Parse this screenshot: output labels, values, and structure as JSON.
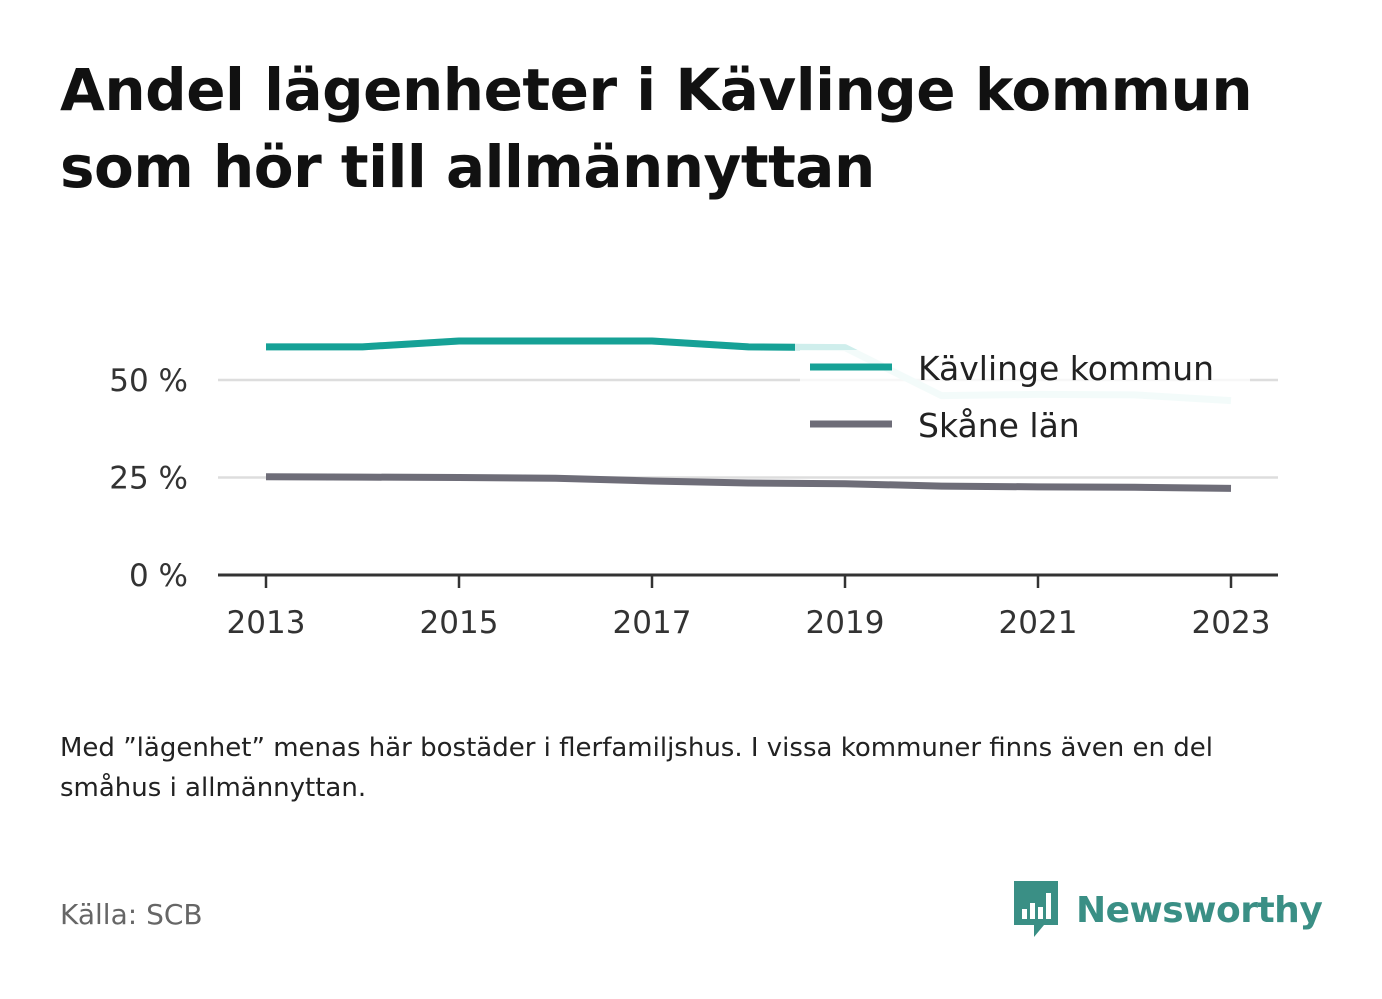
{
  "title": "Andel lägenheter i Kävlinge kommun som hör till allmännyttan",
  "note": "Med ”lägenhet” menas här bostäder i flerfamiljshus. I vissa kommuner finns även en del småhus i allmännyttan.",
  "source": "Källa: SCB",
  "brand": {
    "name": "Newsworthy",
    "icon": "newsworthy-logo-icon",
    "color": "#3a8f85"
  },
  "colors": {
    "kavlinge": "#16a196",
    "kavlinge_faded": "#cfeeec",
    "skane": "#6e6d78",
    "grid": "#dddddd",
    "axis": "#333333"
  },
  "chart_data": {
    "type": "line",
    "x": [
      2013,
      2014,
      2015,
      2016,
      2017,
      2018,
      2019,
      2020,
      2021,
      2022,
      2023
    ],
    "xticks": [
      "2013",
      "2015",
      "2017",
      "2019",
      "2021",
      "2023"
    ],
    "yticks": [
      0,
      25,
      50
    ],
    "ytick_labels": [
      "0 %",
      "25 %",
      "50 %"
    ],
    "ylim": [
      0,
      60
    ],
    "grid": true,
    "legend_position": "top-right",
    "series": [
      {
        "name": "Kävlinge kommun",
        "values": [
          58.5,
          58.5,
          60,
          60,
          60,
          58.5,
          58.3,
          46,
          46.3,
          46.2,
          44.7
        ]
      },
      {
        "name": "Skåne län",
        "values": [
          25.2,
          25.1,
          25.0,
          24.8,
          24.1,
          23.6,
          23.4,
          22.8,
          22.6,
          22.5,
          22.2
        ]
      }
    ]
  }
}
